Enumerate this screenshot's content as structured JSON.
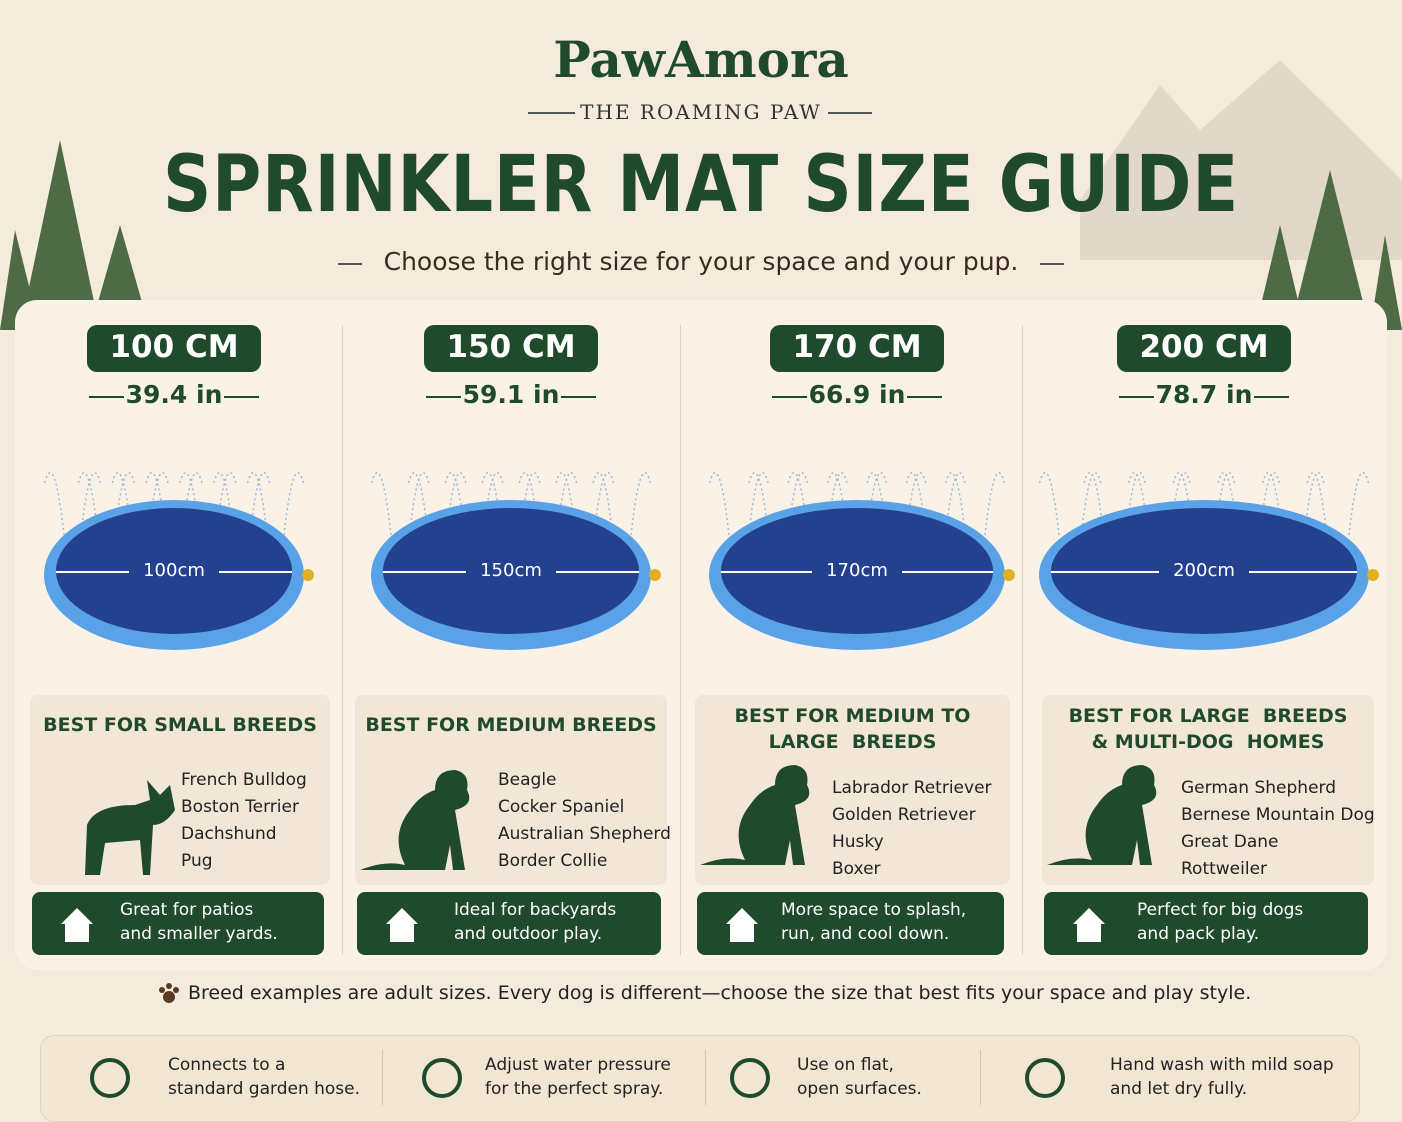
{
  "header": {
    "brand": "PawAmora",
    "tagline": "THE ROAMING PAW",
    "title": "SPRINKLER MAT SIZE GUIDE",
    "subtitle": "Choose the right size for your space and your pup."
  },
  "sizes": [
    {
      "cm": "100 CM",
      "inches": "39.4 in",
      "mat_label": "100cm",
      "best_for": [
        "BEST FOR SMALL BREEDS"
      ],
      "breeds": [
        "French Bulldog",
        "Boston Terrier",
        "Dachshund",
        "Pug"
      ],
      "note": [
        "Great for patios",
        "and smaller yards."
      ]
    },
    {
      "cm": "150 CM",
      "inches": "59.1 in",
      "mat_label": "150cm",
      "best_for": [
        "BEST FOR MEDIUM BREEDS"
      ],
      "breeds": [
        "Beagle",
        "Cocker Spaniel",
        "Australian Shepherd",
        "Border Collie"
      ],
      "note": [
        "Ideal for backyards",
        "and outdoor play."
      ]
    },
    {
      "cm": "170 CM",
      "inches": "66.9 in",
      "mat_label": "170cm",
      "best_for": [
        "BEST FOR MEDIUM TO",
        "LARGE  BREEDS"
      ],
      "breeds": [
        "Labrador Retriever",
        "Golden Retriever",
        "Husky",
        "Boxer"
      ],
      "note": [
        "More space to splash,",
        "run, and cool down."
      ]
    },
    {
      "cm": "200 CM",
      "inches": "78.7 in",
      "mat_label": "200cm",
      "best_for": [
        "BEST FOR LARGE  BREEDS",
        "& MULTI-DOG  HOMES"
      ],
      "breeds": [
        "German Shepherd",
        "Bernese Mountain Dog",
        "Great Dane",
        "Rottweiler"
      ],
      "note": [
        "Perfect for big dogs",
        "and pack play."
      ]
    }
  ],
  "footnote": "Breed examples are adult sizes. Every dog is different—choose the size that best fits your space and play style.",
  "tips": [
    [
      "Connects to a",
      "standard garden hose."
    ],
    [
      "Adjust water pressure",
      "for the perfect spray."
    ],
    [
      "Use on flat,",
      "open surfaces."
    ],
    [
      "Hand wash with mild soap",
      "and let dry fully."
    ]
  ]
}
